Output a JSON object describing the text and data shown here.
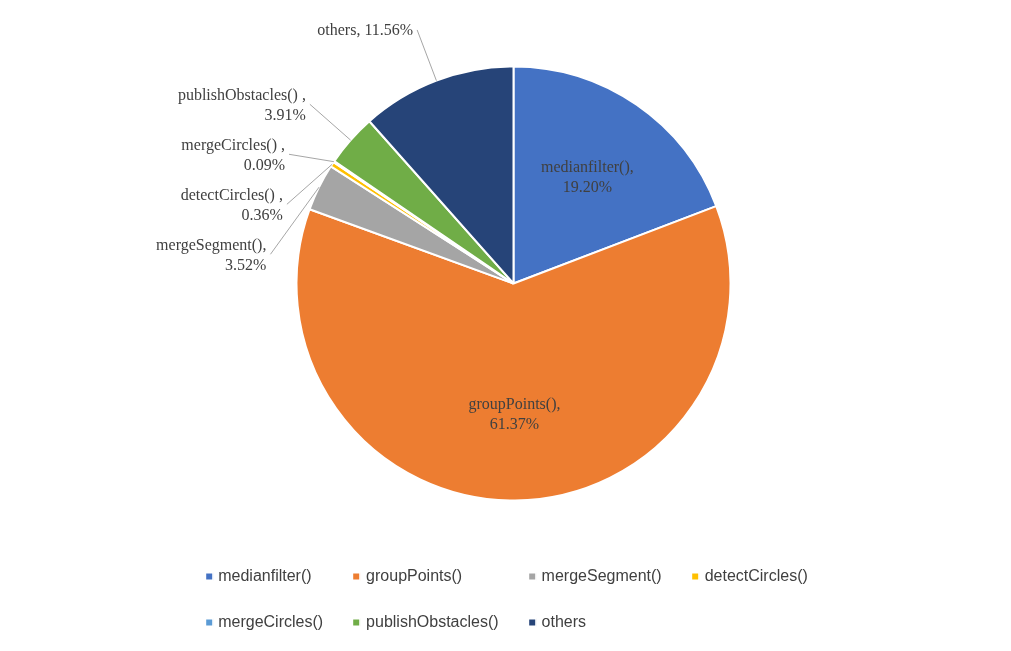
{
  "chart_data": {
    "type": "pie",
    "categories": [
      "medianfilter()",
      "groupPoints()",
      "mergeSegment()",
      "detectCircles()",
      "mergeCircles()",
      "publishObstacles()",
      "others"
    ],
    "values": [
      19.2,
      61.37,
      3.52,
      0.36,
      0.09,
      3.91,
      11.56
    ],
    "colors": [
      "#4472c4",
      "#ed7d31",
      "#a5a5a5",
      "#ffc000",
      "#5b9bd5",
      "#70ad47",
      "#264478"
    ],
    "value_labels": [
      "medianfilter(),\n19.20%",
      "groupPoints(),\n61.37%",
      "mergeSegment(),\n3.52%",
      "detectCircles() ,\n0.36%",
      "mergeCircles() ,\n0.09%",
      "publishObstacles() ,\n3.91%",
      "others, 11.56%"
    ],
    "legend": "bottom"
  }
}
